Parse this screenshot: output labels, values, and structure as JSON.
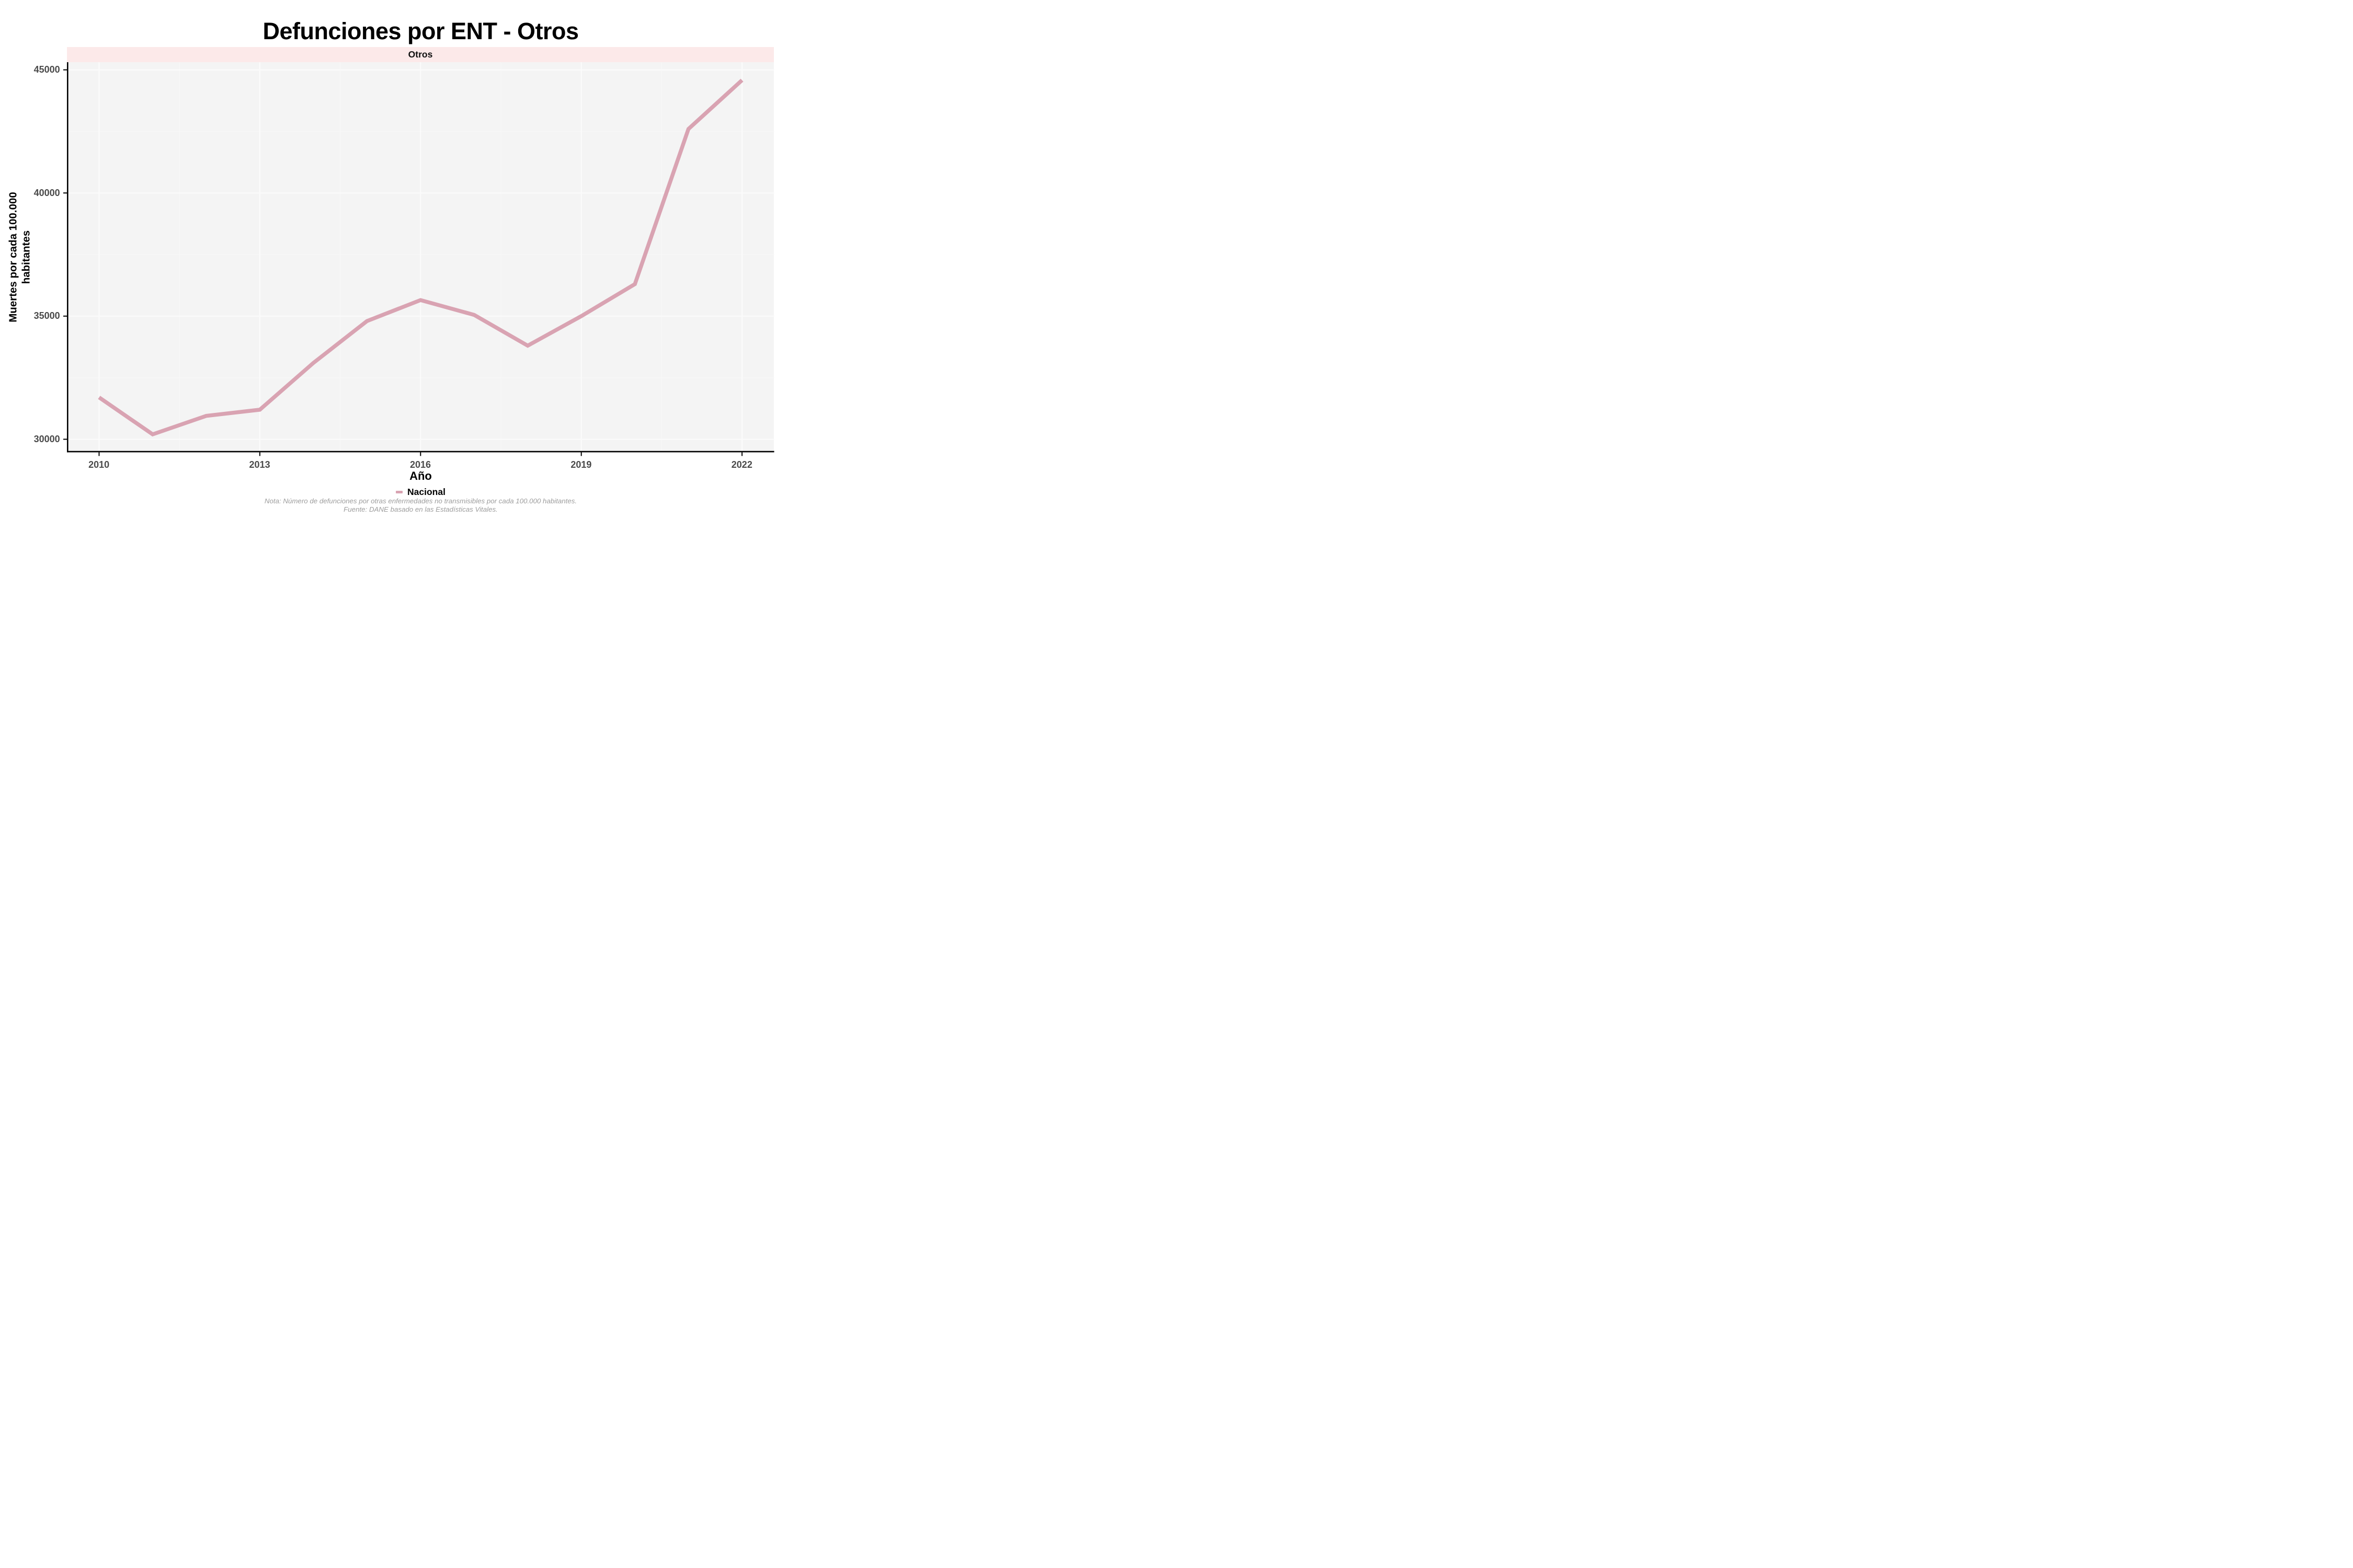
{
  "title": "Defunciones por ENT - Otros",
  "facet": {
    "label": "Otros"
  },
  "axes": {
    "y_title_line1": "Muertes por cada 100.000",
    "y_title_line2": "habitantes",
    "x_title": "Año"
  },
  "legend": {
    "label": "Nacional"
  },
  "notes": {
    "line1": "Nota: Número de defunciones por otras enfermedades no transmisibles por cada 100.000 habitantes.",
    "line2": "Fuente: DANE basado en las Estadísticas Vitales."
  },
  "colors": {
    "line": "#d9a3b2",
    "strip_bg": "#fce9e9",
    "panel_bg": "#f4f4f4",
    "grid_major": "#fbfbfb",
    "grid_minor": "#f8f8f8",
    "axis_text": "#4a4a4a",
    "axis_line": "#000000",
    "note_text": "#9d9d9d"
  },
  "chart_data": {
    "type": "line",
    "title": "Defunciones por ENT - Otros",
    "facet": "Otros",
    "xlabel": "Año",
    "ylabel": "Muertes por cada 100.000 habitantes",
    "grid": true,
    "legend_position": "bottom",
    "x": [
      2010,
      2011,
      2012,
      2013,
      2014,
      2015,
      2016,
      2017,
      2018,
      2019,
      2020,
      2021,
      2022
    ],
    "series": [
      {
        "name": "Nacional",
        "color": "#d9a3b2",
        "values": [
          31700,
          30200,
          30950,
          31200,
          33100,
          34800,
          35650,
          35050,
          33800,
          35000,
          36300,
          42600,
          44580
        ]
      }
    ],
    "x_ticks": [
      2010,
      2013,
      2016,
      2019,
      2022
    ],
    "y_ticks": [
      30000,
      35000,
      40000,
      45000
    ],
    "xlim": [
      2009.4,
      2022.6
    ],
    "ylim": [
      29470,
      45310
    ]
  }
}
